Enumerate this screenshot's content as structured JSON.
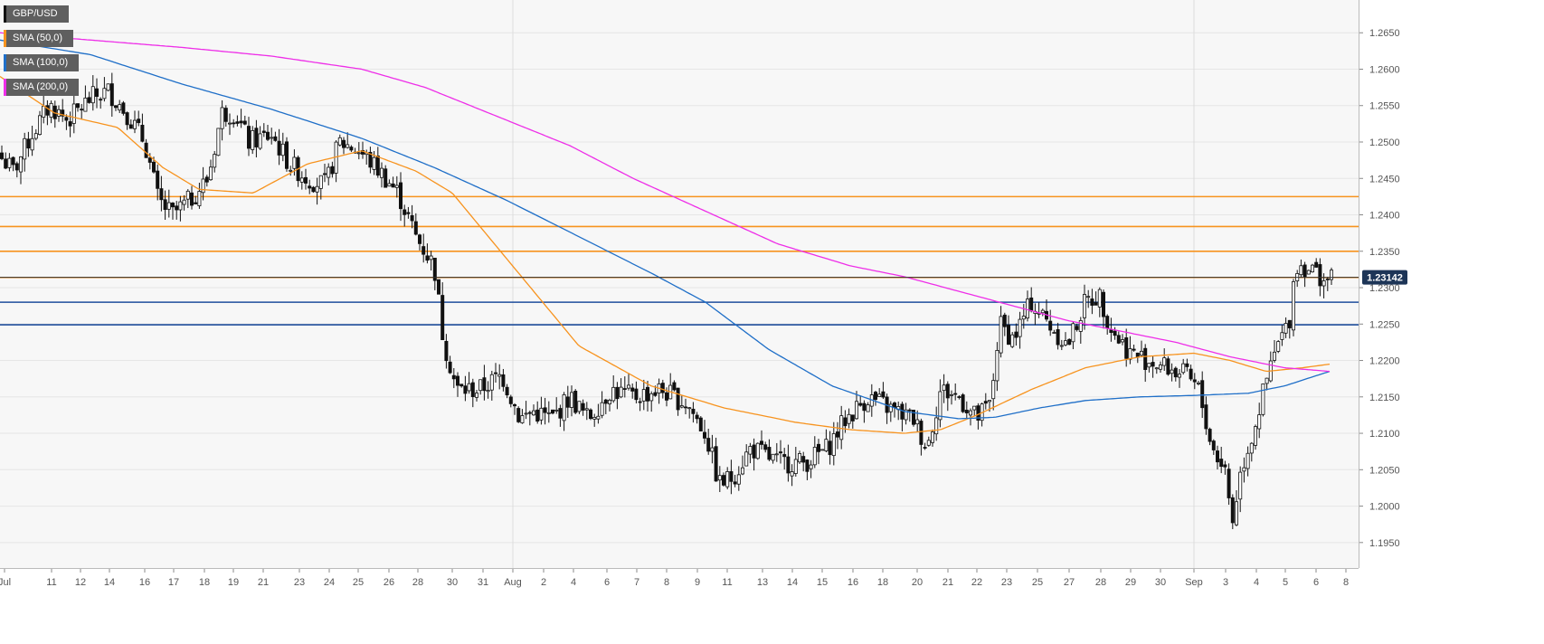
{
  "chart_data": {
    "type": "candlestick",
    "instrument": "GBP/USD",
    "current_price_label": "1.23142",
    "y_ticks": [
      "1.2650",
      "1.2600",
      "1.2550",
      "1.2500",
      "1.2450",
      "1.2400",
      "1.2350",
      "1.2300",
      "1.2250",
      "1.2200",
      "1.2150",
      "1.2100",
      "1.2050",
      "1.2000",
      "1.1950"
    ],
    "x_ticks": [
      "Jul",
      "11",
      "12",
      "14",
      "16",
      "17",
      "18",
      "19",
      "21",
      "23",
      "24",
      "25",
      "26",
      "28",
      "30",
      "31",
      "Aug",
      "2",
      "4",
      "6",
      "7",
      "8",
      "9",
      "11",
      "13",
      "14",
      "15",
      "16",
      "18",
      "20",
      "21",
      "22",
      "23",
      "25",
      "27",
      "28",
      "29",
      "30",
      "Sep",
      "3",
      "4",
      "5",
      "6",
      "8"
    ],
    "ylim": [
      1.1915,
      1.2695
    ],
    "horizontal_levels": [
      {
        "value": 1.2425,
        "color": "#f7931e"
      },
      {
        "value": 1.2384,
        "color": "#f7931e"
      },
      {
        "value": 1.235,
        "color": "#f7931e"
      },
      {
        "value": 1.2314,
        "color": "#f7931e"
      },
      {
        "value": 1.228,
        "color": "#1f4e9c"
      },
      {
        "value": 1.2249,
        "color": "#1f4e9c"
      }
    ],
    "series": [
      {
        "name": "SMA (50,0)",
        "color": "#f7931e",
        "anchors": [
          [
            0,
            1.259
          ],
          [
            60,
            1.254
          ],
          [
            130,
            1.252
          ],
          [
            180,
            1.2465
          ],
          [
            220,
            1.2435
          ],
          [
            280,
            1.243
          ],
          [
            340,
            1.247
          ],
          [
            400,
            1.2488
          ],
          [
            460,
            1.246
          ],
          [
            500,
            1.243
          ],
          [
            560,
            1.234
          ],
          [
            640,
            1.222
          ],
          [
            720,
            1.2165
          ],
          [
            800,
            1.2135
          ],
          [
            880,
            1.2115
          ],
          [
            940,
            1.2105
          ],
          [
            1000,
            1.21
          ],
          [
            1040,
            1.2105
          ],
          [
            1080,
            1.2125
          ],
          [
            1140,
            1.216
          ],
          [
            1200,
            1.219
          ],
          [
            1260,
            1.2205
          ],
          [
            1320,
            1.221
          ],
          [
            1360,
            1.22
          ],
          [
            1400,
            1.2185
          ],
          [
            1440,
            1.219
          ],
          [
            1470,
            1.2195
          ]
        ]
      },
      {
        "name": "SMA (100,0)",
        "color": "#1f6fc8",
        "anchors": [
          [
            0,
            1.264
          ],
          [
            100,
            1.262
          ],
          [
            200,
            1.258
          ],
          [
            300,
            1.2545
          ],
          [
            400,
            1.2505
          ],
          [
            480,
            1.2465
          ],
          [
            560,
            1.242
          ],
          [
            640,
            1.237
          ],
          [
            720,
            1.232
          ],
          [
            780,
            1.228
          ],
          [
            850,
            1.2215
          ],
          [
            920,
            1.2165
          ],
          [
            1000,
            1.213
          ],
          [
            1060,
            1.212
          ],
          [
            1100,
            1.2122
          ],
          [
            1150,
            1.2135
          ],
          [
            1200,
            1.2145
          ],
          [
            1260,
            1.215
          ],
          [
            1320,
            1.2152
          ],
          [
            1380,
            1.2155
          ],
          [
            1420,
            1.2165
          ],
          [
            1470,
            1.2185
          ]
        ]
      },
      {
        "name": "SMA (200,0)",
        "color": "#ee2ee8",
        "anchors": [
          [
            0,
            1.265
          ],
          [
            100,
            1.264
          ],
          [
            200,
            1.263
          ],
          [
            300,
            1.2618
          ],
          [
            400,
            1.26
          ],
          [
            470,
            1.2575
          ],
          [
            560,
            1.253
          ],
          [
            630,
            1.2495
          ],
          [
            700,
            1.245
          ],
          [
            780,
            1.2405
          ],
          [
            860,
            1.236
          ],
          [
            940,
            1.233
          ],
          [
            1000,
            1.2315
          ],
          [
            1060,
            1.2295
          ],
          [
            1120,
            1.2275
          ],
          [
            1180,
            1.2255
          ],
          [
            1240,
            1.224
          ],
          [
            1300,
            1.2225
          ],
          [
            1360,
            1.2205
          ],
          [
            1420,
            1.219
          ],
          [
            1470,
            1.2185
          ]
        ]
      }
    ],
    "candle_path": [
      [
        0,
        1.248
      ],
      [
        15,
        1.246
      ],
      [
        35,
        1.251
      ],
      [
        55,
        1.255
      ],
      [
        75,
        1.253
      ],
      [
        100,
        1.256
      ],
      [
        120,
        1.257
      ],
      [
        140,
        1.254
      ],
      [
        160,
        1.25
      ],
      [
        175,
        1.242
      ],
      [
        190,
        1.24
      ],
      [
        210,
        1.242
      ],
      [
        230,
        1.245
      ],
      [
        245,
        1.254
      ],
      [
        260,
        1.254
      ],
      [
        275,
        1.25
      ],
      [
        300,
        1.251
      ],
      [
        320,
        1.247
      ],
      [
        340,
        1.245
      ],
      [
        360,
        1.244
      ],
      [
        375,
        1.25
      ],
      [
        395,
        1.249
      ],
      [
        420,
        1.246
      ],
      [
        440,
        1.243
      ],
      [
        460,
        1.237
      ],
      [
        480,
        1.233
      ],
      [
        490,
        1.223
      ],
      [
        505,
        1.216
      ],
      [
        530,
        1.216
      ],
      [
        555,
        1.218
      ],
      [
        575,
        1.212
      ],
      [
        590,
        1.213
      ],
      [
        610,
        1.212
      ],
      [
        630,
        1.215
      ],
      [
        650,
        1.212
      ],
      [
        675,
        1.216
      ],
      [
        700,
        1.215
      ],
      [
        730,
        1.216
      ],
      [
        760,
        1.214
      ],
      [
        780,
        1.21
      ],
      [
        795,
        1.203
      ],
      [
        810,
        1.204
      ],
      [
        830,
        1.208
      ],
      [
        860,
        1.206
      ],
      [
        890,
        1.206
      ],
      [
        915,
        1.208
      ],
      [
        935,
        1.212
      ],
      [
        960,
        1.215
      ],
      [
        990,
        1.213
      ],
      [
        1010,
        1.212
      ],
      [
        1025,
        1.208
      ],
      [
        1040,
        1.216
      ],
      [
        1060,
        1.215
      ],
      [
        1080,
        1.212
      ],
      [
        1095,
        1.214
      ],
      [
        1105,
        1.225
      ],
      [
        1120,
        1.223
      ],
      [
        1140,
        1.228
      ],
      [
        1160,
        1.225
      ],
      [
        1180,
        1.222
      ],
      [
        1200,
        1.228
      ],
      [
        1215,
        1.229
      ],
      [
        1230,
        1.224
      ],
      [
        1250,
        1.221
      ],
      [
        1270,
        1.22
      ],
      [
        1290,
        1.219
      ],
      [
        1310,
        1.218
      ],
      [
        1325,
        1.216
      ],
      [
        1340,
        1.208
      ],
      [
        1355,
        1.205
      ],
      [
        1362,
        1.1975
      ],
      [
        1372,
        1.205
      ],
      [
        1385,
        1.21
      ],
      [
        1400,
        1.217
      ],
      [
        1412,
        1.222
      ],
      [
        1425,
        1.225
      ],
      [
        1432,
        1.233
      ],
      [
        1445,
        1.233
      ],
      [
        1460,
        1.2315
      ],
      [
        1472,
        1.231
      ]
    ]
  },
  "legend": [
    {
      "label": "GBP/USD",
      "color": "#111111"
    },
    {
      "label": "SMA (50,0)",
      "color": "#f7931e"
    },
    {
      "label": "SMA (100,0)",
      "color": "#1f6fc8"
    },
    {
      "label": "SMA (200,0)",
      "color": "#ee2ee8"
    }
  ]
}
